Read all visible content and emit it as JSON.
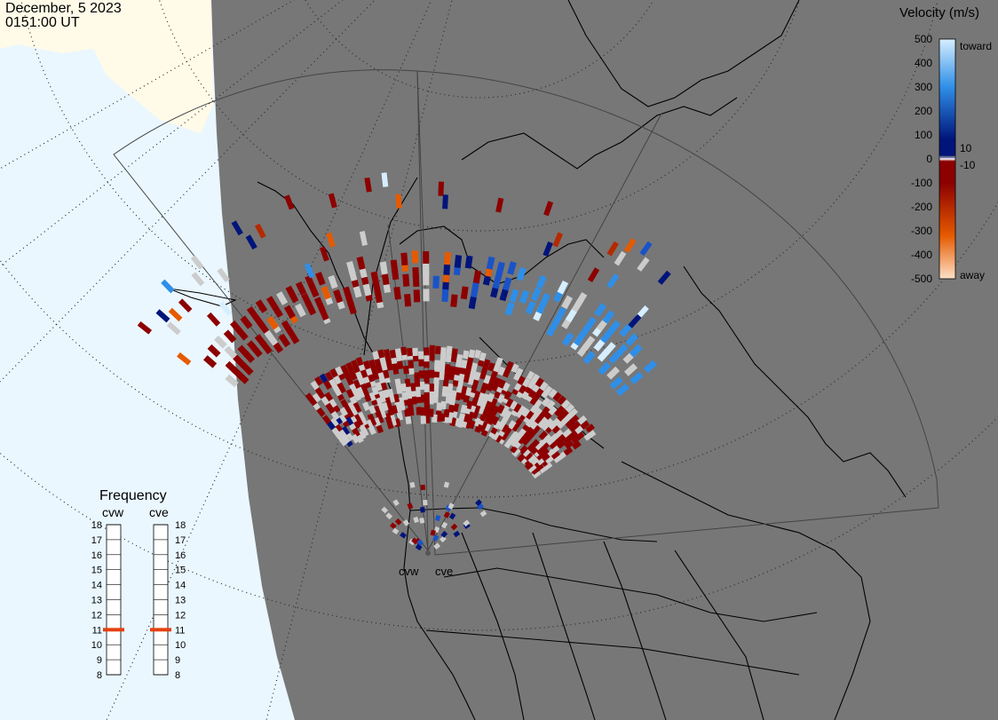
{
  "header": {
    "date": "December, 5 2023",
    "time": "0151:00 UT"
  },
  "velocity_scale": {
    "title": "Velocity (m/s)",
    "ticks": [
      "500",
      "400",
      "300",
      "200",
      "100",
      "0",
      "-100",
      "-200",
      "-300",
      "-400",
      "-500"
    ],
    "toward_label": "toward",
    "away_label": "away",
    "threshold_pos": "10",
    "threshold_neg": "-10",
    "colors": {
      "toward_strong": "#d6eeff",
      "toward_mid": "#2f8fe8",
      "toward_weak": "#00147a",
      "zero": "#ffffff",
      "away_weak": "#8c0000",
      "away_mid": "#e55a00",
      "away_strong": "#fde1c6",
      "ground_scatter": "#cccccc"
    }
  },
  "frequency_panel": {
    "title": "Frequency",
    "radars": [
      {
        "code": "cvw",
        "value_mhz": 11
      },
      {
        "code": "cve",
        "value_mhz": 11
      }
    ],
    "scale_ticks": [
      "18",
      "17",
      "16",
      "15",
      "14",
      "13",
      "12",
      "11",
      "10",
      "9",
      "8"
    ],
    "marker_color": "#e64010"
  },
  "map": {
    "colors": {
      "land": "#777777",
      "ocean": "#eaf7ff",
      "ice": "#fffbe8",
      "coast": "#000000",
      "grid": "#2a2a2a",
      "fov": "#444444"
    },
    "radar_sites": [
      "cvw",
      "cve"
    ]
  }
}
